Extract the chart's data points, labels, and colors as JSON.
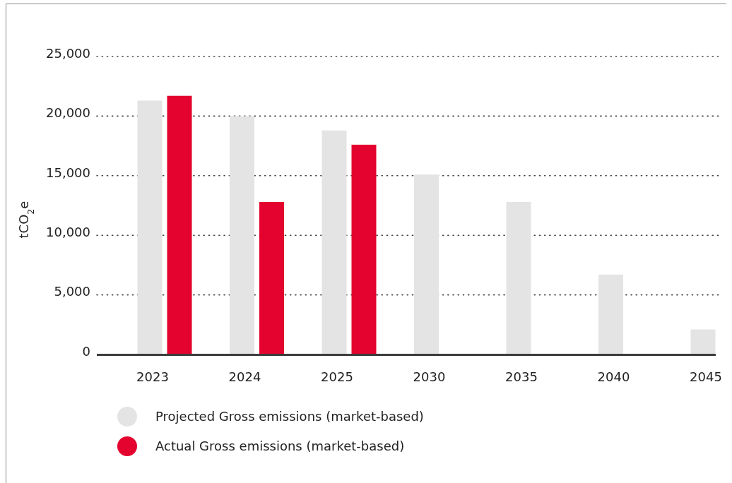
{
  "chart_data": {
    "type": "bar",
    "ylabel": "tCO$_{2}$e",
    "categories": [
      "2023",
      "2024",
      "2025",
      "2030",
      "2035",
      "2040",
      "2045"
    ],
    "series": [
      {
        "name": "Projected Gross emissions (market-based)",
        "color": "#e4e4e4",
        "values": [
          21300,
          20000,
          18800,
          15100,
          12800,
          6700,
          2100
        ]
      },
      {
        "name": "Actual Gross emissions (market-based)",
        "color": "#e4032e",
        "values": [
          21700,
          12800,
          17600,
          null,
          null,
          null,
          null
        ]
      }
    ],
    "ylim": [
      0,
      25000
    ],
    "yticks": [
      {
        "value": 0,
        "label": "0"
      },
      {
        "value": 5000,
        "label": "5,000"
      },
      {
        "value": 10000,
        "label": "10,000"
      },
      {
        "value": 15000,
        "label": "15,000"
      },
      {
        "value": 20000,
        "label": "20,000"
      },
      {
        "value": 25000,
        "label": "25,000"
      }
    ],
    "grid": "y",
    "legend": "bottom left"
  }
}
